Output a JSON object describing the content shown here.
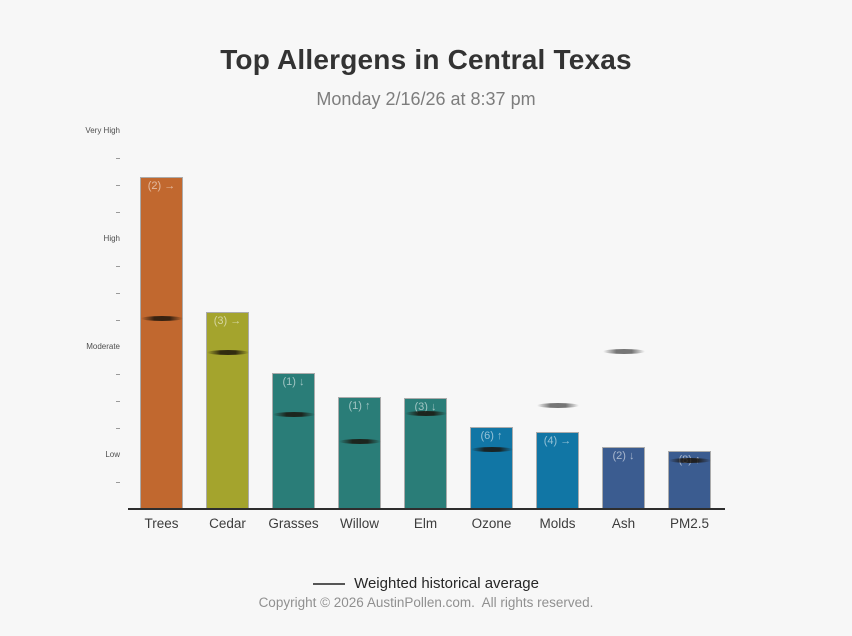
{
  "page": {
    "background": "#f7f7f7"
  },
  "header": {
    "title": "Top Allergens in Central Texas",
    "subtitle": "Monday 2/16/26 at 8:37 pm"
  },
  "legend": {
    "label": "Weighted historical average"
  },
  "footer": {
    "copyright": "Copyright © 2026 AustinPollen.com.  All rights reserved."
  },
  "chart_data": {
    "type": "bar",
    "title": "Top Allergens in Central Texas",
    "subtitle": "Monday 2/16/26 at 8:37 pm",
    "xlabel": "",
    "ylabel": "",
    "ylim": [
      0,
      16
    ],
    "grid": false,
    "legend_position": "bottom-center",
    "y_bands": [
      {
        "label": "Low",
        "value": 2
      },
      {
        "label": "Moderate",
        "value": 6
      },
      {
        "label": "High",
        "value": 10
      },
      {
        "label": "Very High",
        "value": 14
      }
    ],
    "minor_ticks": [
      1,
      3,
      4,
      5,
      7,
      8,
      9,
      11,
      12,
      13
    ],
    "categories": [
      "Trees",
      "Cedar",
      "Grasses",
      "Willow",
      "Elm",
      "Ozone",
      "Molds",
      "Ash",
      "PM2.5"
    ],
    "bars": [
      {
        "category": "Trees",
        "value": 12.3,
        "annotation": "(2) →",
        "color": "#c1682f",
        "historical_avg": 7.05
      },
      {
        "category": "Cedar",
        "value": 7.3,
        "annotation": "(3) →",
        "color": "#a4a42d",
        "historical_avg": 5.8
      },
      {
        "category": "Grasses",
        "value": 5.05,
        "annotation": "(1) ↓",
        "color": "#2a7d78",
        "historical_avg": 3.5
      },
      {
        "category": "Willow",
        "value": 4.15,
        "annotation": "(1) ↑",
        "color": "#2a7d78",
        "historical_avg": 2.5
      },
      {
        "category": "Elm",
        "value": 4.1,
        "annotation": "(3) ↓",
        "color": "#2a7d78",
        "historical_avg": 3.55
      },
      {
        "category": "Ozone",
        "value": 3.05,
        "annotation": "(6) ↑",
        "color": "#1176a5",
        "historical_avg": 2.2
      },
      {
        "category": "Molds",
        "value": 2.85,
        "annotation": "(4) →",
        "color": "#1176a5",
        "historical_avg": 3.85
      },
      {
        "category": "Ash",
        "value": 2.3,
        "annotation": "(2) ↓",
        "color": "#3b5c90",
        "historical_avg": 5.85
      },
      {
        "category": "PM2.5",
        "value": 2.15,
        "annotation": "(8) ↑",
        "color": "#3b5c90",
        "historical_avg": 1.8
      }
    ],
    "annotation_legend": "Weighted historical average",
    "colors": {
      "background": "#f7f7f7",
      "title": "#333333",
      "subtitle": "#7d7d7d",
      "bar_stroke": "#ababab",
      "axis": "#2e2e2e",
      "marker_dark": "#19120a",
      "marker_gray": "#5f5f5f"
    }
  }
}
